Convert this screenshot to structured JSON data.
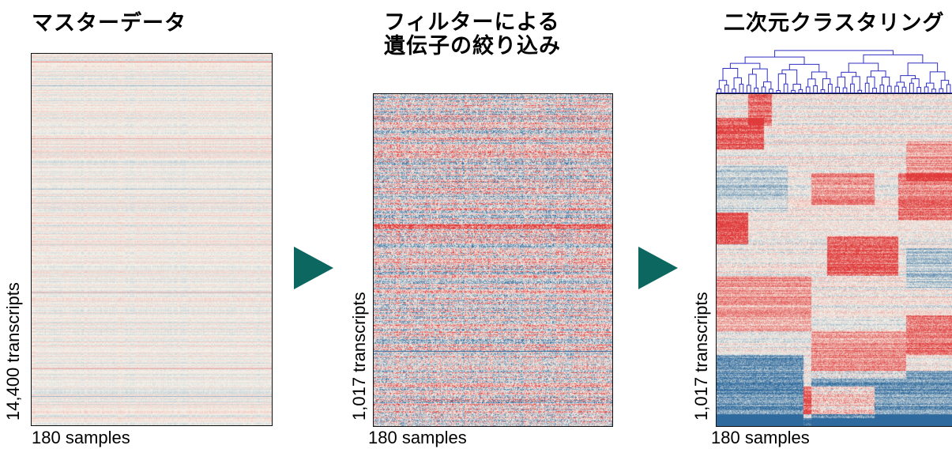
{
  "panels": [
    {
      "id": "master",
      "title_lines": [
        "マスターデータ"
      ],
      "ylabel": "14,400 transcripts",
      "xlabel": "180 samples",
      "style": "faint"
    },
    {
      "id": "filtered",
      "title_lines": [
        "フィルターによる",
        "遺伝子の絞り込み"
      ],
      "ylabel": "1,017 transcripts",
      "xlabel": "180 samples",
      "style": "filtered"
    },
    {
      "id": "clustered",
      "title_lines": [
        "二次元クラスタリング"
      ],
      "ylabel": "1,017 transcripts",
      "xlabel": "180 samples",
      "style": "clustered"
    }
  ],
  "colors": {
    "arrow": "#0b6760",
    "dendrogram": "#2f2fc4",
    "heat_high": "#e03a3a",
    "heat_low": "#2e6a9e",
    "heat_mid": "#f6f3ea",
    "frame": "#111111"
  },
  "icons": [
    "right-triangle-arrow-icon",
    "right-triangle-arrow-icon"
  ]
}
